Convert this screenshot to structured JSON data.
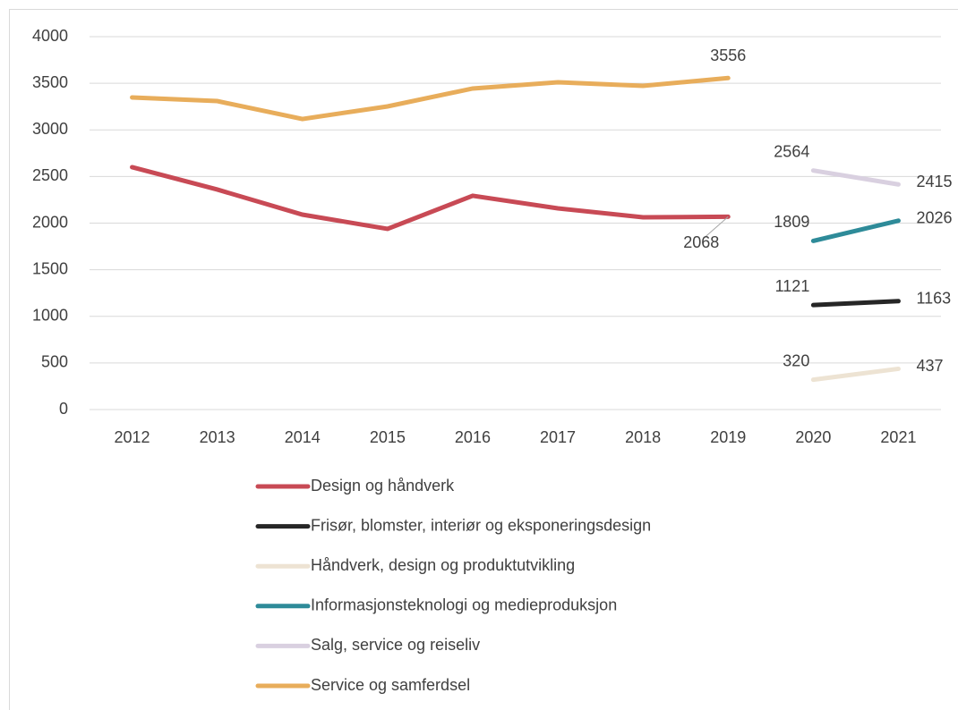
{
  "chart_data": {
    "type": "line",
    "categories": [
      "2012",
      "2013",
      "2014",
      "2015",
      "2016",
      "2017",
      "2018",
      "2019",
      "2020",
      "2021"
    ],
    "ylim": [
      0,
      4000
    ],
    "yticks": [
      0,
      500,
      1000,
      1500,
      2000,
      2500,
      3000,
      3500,
      4000
    ],
    "grid": true,
    "legend": "bottom",
    "series": [
      {
        "name": "Design og håndverk",
        "color": "#c84a55",
        "values": [
          2600,
          2360,
          2091,
          1938,
          2293,
          2158,
          2062,
          2068,
          null,
          null
        ]
      },
      {
        "name": "Frisør, blomster, interiør og eksponeringsdesign",
        "color": "#262626",
        "values": [
          null,
          null,
          null,
          null,
          null,
          null,
          null,
          null,
          1121,
          1163
        ]
      },
      {
        "name": "Håndverk, design og produktutvikling",
        "color": "#ede3d3",
        "values": [
          null,
          null,
          null,
          null,
          null,
          null,
          null,
          null,
          320,
          437
        ]
      },
      {
        "name": "Informasjonsteknologi og medieproduksjon",
        "color": "#2e8b99",
        "values": [
          null,
          null,
          null,
          null,
          null,
          null,
          null,
          null,
          1809,
          2026
        ]
      },
      {
        "name": "Salg, service og reiseliv",
        "color": "#d9d0e0",
        "values": [
          null,
          null,
          null,
          null,
          null,
          null,
          null,
          null,
          2564,
          2415
        ]
      },
      {
        "name": "Service og samferdsel",
        "color": "#e8ad5b",
        "values": [
          3348,
          3309,
          3117,
          3252,
          3444,
          3511,
          3472,
          3556,
          null,
          null
        ]
      }
    ]
  }
}
